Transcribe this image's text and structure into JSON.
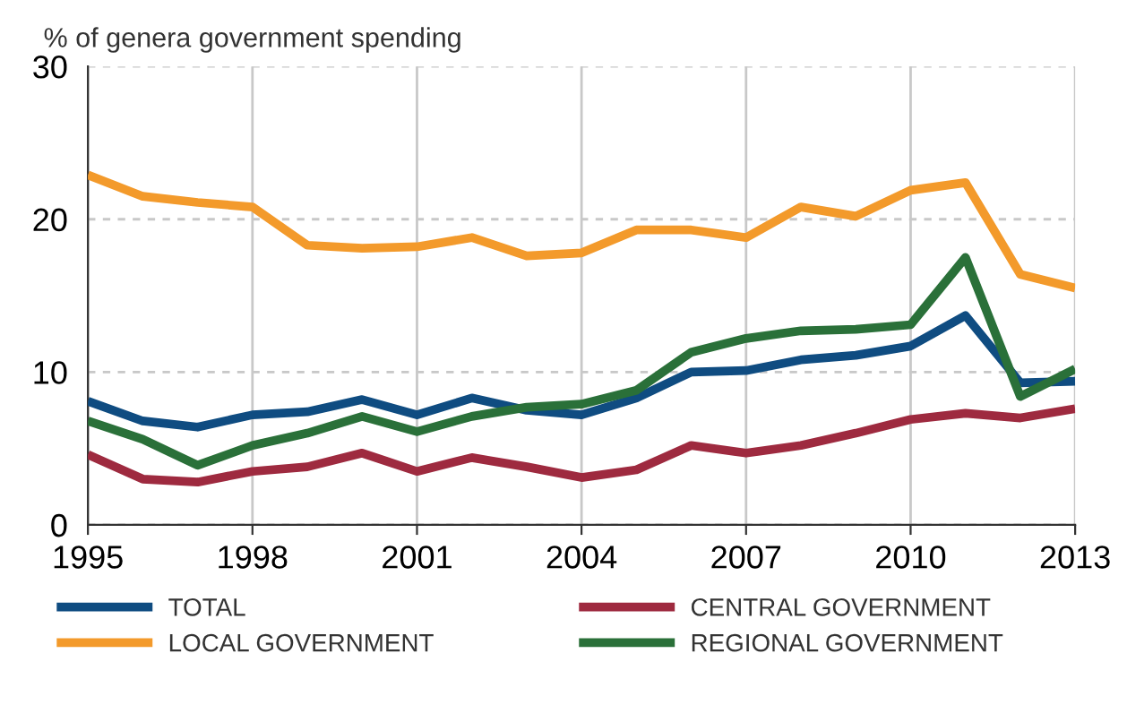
{
  "chart_data": {
    "type": "line",
    "ylabel": "% of genera government spending",
    "x": [
      1995,
      1996,
      1997,
      1998,
      1999,
      2000,
      2001,
      2002,
      2003,
      2004,
      2005,
      2006,
      2007,
      2008,
      2009,
      2010,
      2011,
      2012,
      2013
    ],
    "series": [
      {
        "name": "TOTAL",
        "color": "#0f4c81",
        "values": [
          8.1,
          6.8,
          6.4,
          7.2,
          7.4,
          8.2,
          7.2,
          8.3,
          7.5,
          7.2,
          8.3,
          10.0,
          10.1,
          10.8,
          11.1,
          11.7,
          13.7,
          9.3,
          9.4
        ]
      },
      {
        "name": "CENTRAL GOVERNMENT",
        "color": "#9e2a3f",
        "values": [
          4.6,
          3.0,
          2.8,
          3.5,
          3.8,
          4.7,
          3.5,
          4.4,
          3.8,
          3.1,
          3.6,
          5.2,
          4.7,
          5.2,
          6.0,
          6.9,
          7.3,
          7.0,
          7.6
        ]
      },
      {
        "name": "LOCAL GOVERNMENT",
        "color": "#f39a2b",
        "values": [
          22.9,
          21.5,
          21.1,
          20.8,
          18.3,
          18.1,
          18.2,
          18.8,
          17.6,
          17.8,
          19.3,
          19.3,
          18.8,
          20.8,
          20.2,
          21.9,
          22.4,
          16.4,
          15.5
        ]
      },
      {
        "name": "REGIONAL GOVERNMENT",
        "color": "#2a7039",
        "values": [
          6.8,
          5.6,
          3.9,
          5.2,
          6.0,
          7.1,
          6.1,
          7.1,
          7.7,
          7.9,
          8.8,
          11.3,
          12.2,
          12.7,
          12.8,
          13.1,
          17.5,
          8.4,
          10.2
        ]
      }
    ],
    "xlim": [
      1995,
      2013
    ],
    "xticks": [
      1995,
      1998,
      2001,
      2004,
      2007,
      2010,
      2013
    ],
    "ylim": [
      0,
      30
    ],
    "yticks": [
      0,
      10,
      20,
      30
    ],
    "grid": true,
    "legend": "bottom",
    "marker": "none",
    "line_style": "solid"
  }
}
